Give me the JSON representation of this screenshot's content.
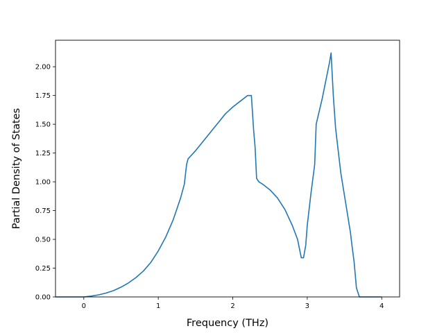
{
  "chart_data": {
    "type": "line",
    "title": "",
    "xlabel": "Frequency (THz)",
    "ylabel": "Partial Density of States",
    "xlim": [
      -0.38,
      4.24
    ],
    "ylim": [
      0.0,
      2.23
    ],
    "xticks": [
      0,
      1,
      2,
      3,
      4
    ],
    "xtick_labels": [
      "0",
      "1",
      "2",
      "3",
      "4"
    ],
    "yticks": [
      0.0,
      0.25,
      0.5,
      0.75,
      1.0,
      1.25,
      1.5,
      1.75,
      2.0
    ],
    "ytick_labels": [
      "0.00",
      "0.25",
      "0.50",
      "0.75",
      "1.00",
      "1.25",
      "1.50",
      "1.75",
      "2.00"
    ],
    "grid": false,
    "legend": "none",
    "line_color": "#1f77b4",
    "series": [
      {
        "x": [
          -0.38,
          0.0,
          0.1,
          0.2,
          0.3,
          0.4,
          0.5,
          0.6,
          0.7,
          0.8,
          0.9,
          1.0,
          1.1,
          1.2,
          1.3,
          1.35,
          1.38,
          1.4,
          1.5,
          1.6,
          1.7,
          1.8,
          1.9,
          2.0,
          2.1,
          2.2,
          2.25,
          2.28,
          2.3,
          2.32,
          2.35,
          2.4,
          2.5,
          2.6,
          2.7,
          2.8,
          2.87,
          2.92,
          2.95,
          2.98,
          3.0,
          3.05,
          3.1,
          3.12,
          3.2,
          3.25,
          3.3,
          3.32,
          3.35,
          3.38,
          3.45,
          3.52,
          3.58,
          3.6,
          3.63,
          3.66,
          3.7,
          4.0
        ],
        "y": [
          0.0,
          0.0,
          0.007,
          0.018,
          0.034,
          0.055,
          0.085,
          0.122,
          0.168,
          0.225,
          0.3,
          0.4,
          0.52,
          0.67,
          0.86,
          0.98,
          1.15,
          1.2,
          1.27,
          1.35,
          1.43,
          1.51,
          1.59,
          1.65,
          1.7,
          1.75,
          1.75,
          1.45,
          1.3,
          1.03,
          1.0,
          0.98,
          0.93,
          0.86,
          0.76,
          0.62,
          0.5,
          0.34,
          0.34,
          0.45,
          0.62,
          0.9,
          1.15,
          1.5,
          1.72,
          1.88,
          2.04,
          2.12,
          1.75,
          1.47,
          1.08,
          0.8,
          0.56,
          0.45,
          0.3,
          0.08,
          0.0,
          0.0
        ]
      }
    ]
  }
}
